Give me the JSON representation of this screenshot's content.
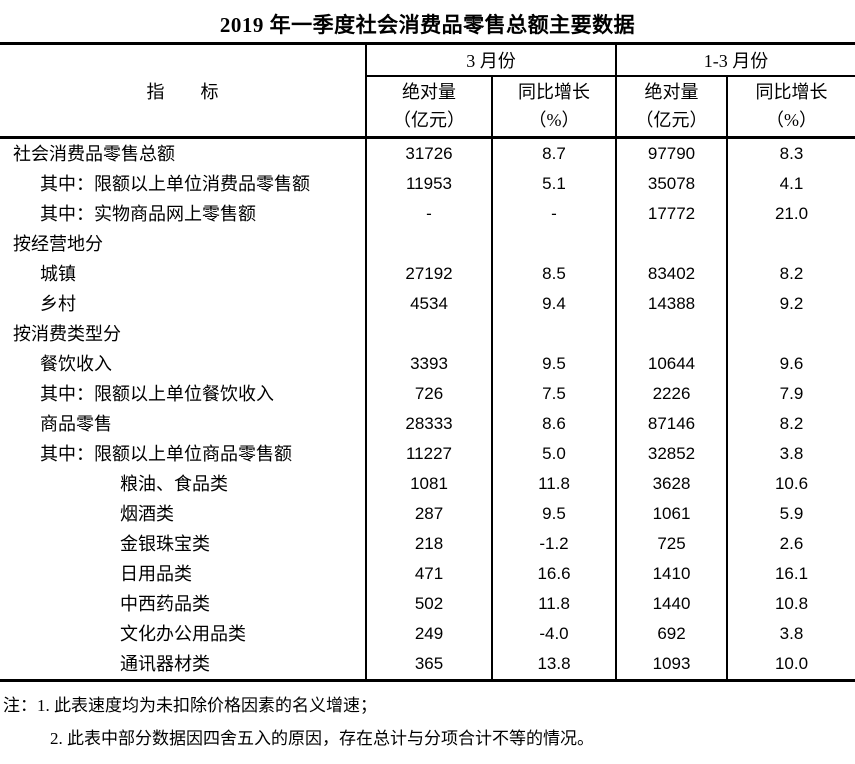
{
  "title": "2019 年一季度社会消费品零售总额主要数据",
  "table": {
    "indicator_header": "指　　标",
    "col_groups": [
      {
        "label": "3 月份"
      },
      {
        "label": "1-3 月份"
      }
    ],
    "sub_headers": [
      {
        "line1": "绝对量",
        "line2": "（亿元）"
      },
      {
        "line1": "同比增长",
        "line2": "（%）"
      },
      {
        "line1": "绝对量",
        "line2": "（亿元）"
      },
      {
        "line1": "同比增长",
        "line2": "（%）"
      }
    ],
    "rows": [
      {
        "indicator": "社会消费品零售总额",
        "indent": 0,
        "values": [
          "31726",
          "8.7",
          "97790",
          "8.3"
        ]
      },
      {
        "indicator": "其中：限额以上单位消费品零售额",
        "indent": 1,
        "values": [
          "11953",
          "5.1",
          "35078",
          "4.1"
        ]
      },
      {
        "indicator": "其中：实物商品网上零售额",
        "indent": 1,
        "values": [
          "-",
          "-",
          "17772",
          "21.0"
        ]
      },
      {
        "indicator": "按经营地分",
        "indent": 0,
        "values": [
          "",
          "",
          "",
          ""
        ]
      },
      {
        "indicator": "城镇",
        "indent": 1,
        "values": [
          "27192",
          "8.5",
          "83402",
          "8.2"
        ]
      },
      {
        "indicator": "乡村",
        "indent": 1,
        "values": [
          "4534",
          "9.4",
          "14388",
          "9.2"
        ]
      },
      {
        "indicator": "按消费类型分",
        "indent": 0,
        "values": [
          "",
          "",
          "",
          ""
        ]
      },
      {
        "indicator": "餐饮收入",
        "indent": 1,
        "values": [
          "3393",
          "9.5",
          "10644",
          "9.6"
        ]
      },
      {
        "indicator": "其中：限额以上单位餐饮收入",
        "indent": 1,
        "values": [
          "726",
          "7.5",
          "2226",
          "7.9"
        ]
      },
      {
        "indicator": "商品零售",
        "indent": 1,
        "values": [
          "28333",
          "8.6",
          "87146",
          "8.2"
        ]
      },
      {
        "indicator": "其中：限额以上单位商品零售额",
        "indent": 1,
        "values": [
          "11227",
          "5.0",
          "32852",
          "3.8"
        ]
      },
      {
        "indicator": "粮油、食品类",
        "indent": 2,
        "values": [
          "1081",
          "11.8",
          "3628",
          "10.6"
        ]
      },
      {
        "indicator": "烟酒类",
        "indent": 2,
        "values": [
          "287",
          "9.5",
          "1061",
          "5.9"
        ]
      },
      {
        "indicator": "金银珠宝类",
        "indent": 2,
        "values": [
          "218",
          "-1.2",
          "725",
          "2.6"
        ]
      },
      {
        "indicator": "日用品类",
        "indent": 2,
        "values": [
          "471",
          "16.6",
          "1410",
          "16.1"
        ]
      },
      {
        "indicator": "中西药品类",
        "indent": 2,
        "values": [
          "502",
          "11.8",
          "1440",
          "10.8"
        ]
      },
      {
        "indicator": "文化办公用品类",
        "indent": 2,
        "values": [
          "249",
          "-4.0",
          "692",
          "3.8"
        ]
      },
      {
        "indicator": "通讯器材类",
        "indent": 2,
        "values": [
          "365",
          "13.8",
          "1093",
          "10.0"
        ]
      }
    ]
  },
  "notes": {
    "prefix": "注：",
    "items": [
      "1. 此表速度均为未扣除价格因素的名义增速；",
      "2. 此表中部分数据因四舍五入的原因，存在总计与分项合计不等的情况。"
    ]
  }
}
